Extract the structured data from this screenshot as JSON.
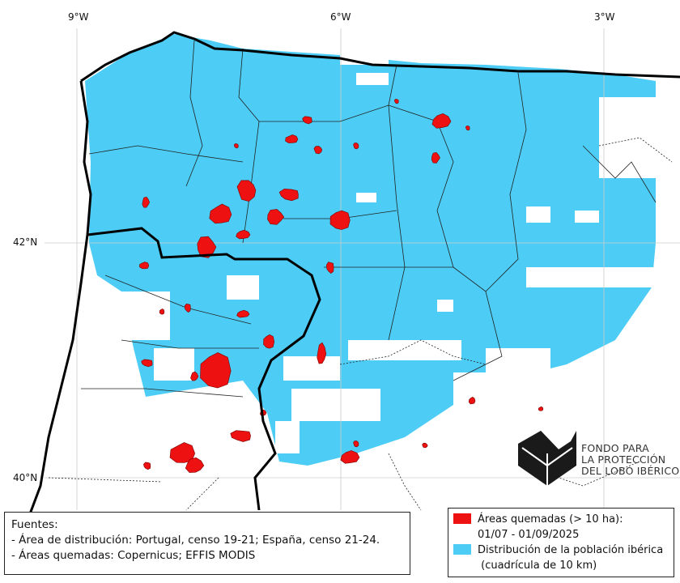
{
  "map": {
    "lon_labels": [
      "9°W",
      "6°W",
      "3°W"
    ],
    "lat_labels": [
      "42°N",
      "40°N"
    ],
    "colors": {
      "burned": "#ee1111",
      "distribution": "#4dcdf5",
      "coast": "#000000"
    }
  },
  "sources": {
    "title": "Fuentes:",
    "lines": [
      "- Área de distribución: Portugal, censo 19-21; España, censo 21-24.",
      "- Áreas quemadas: Copernicus; EFFIS MODIS"
    ]
  },
  "legend": {
    "burned_label": "Áreas quemadas (> 10 ha):",
    "burned_dates": "01/07 - 01/09/2025",
    "distribution_label": "Distribución de la población ibérica",
    "distribution_note": " (cuadrícula de 10 km)"
  },
  "logo": {
    "lines": [
      "FONDO PARA",
      "LA PROTECCIÓN",
      "DEL LOBO IBÉRICO"
    ]
  }
}
